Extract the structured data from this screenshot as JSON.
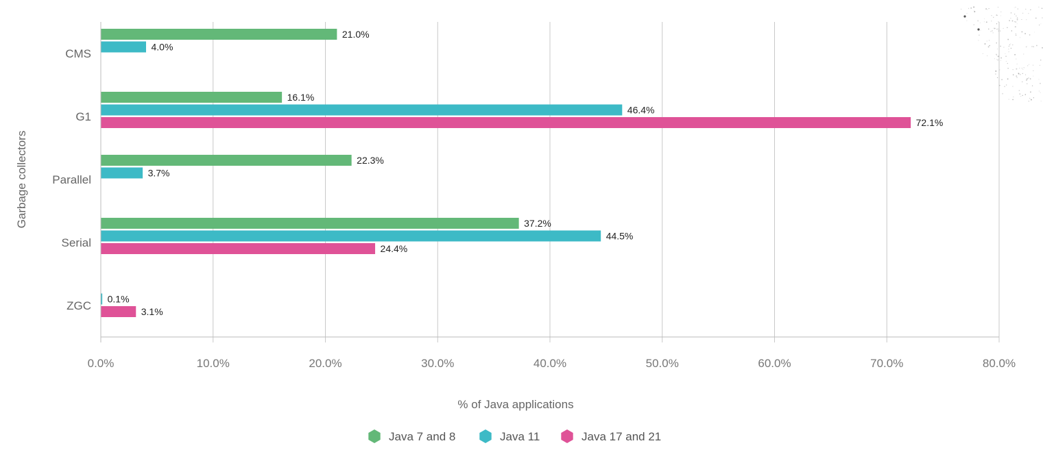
{
  "chart_data": {
    "type": "bar",
    "orientation": "horizontal",
    "categories": [
      "CMS",
      "G1",
      "Parallel",
      "Serial",
      "ZGC"
    ],
    "series": [
      {
        "name": "Java 7 and 8",
        "color": "#63b878",
        "values": [
          21.0,
          16.1,
          22.3,
          37.2,
          null
        ],
        "labels": [
          "21.0%",
          "16.1%",
          "22.3%",
          "37.2%",
          null
        ]
      },
      {
        "name": "Java 11",
        "color": "#3dbac6",
        "values": [
          4.0,
          46.4,
          3.7,
          44.5,
          0.1
        ],
        "labels": [
          "4.0%",
          "46.4%",
          "3.7%",
          "44.5%",
          "0.1%"
        ]
      },
      {
        "name": "Java 17 and 21",
        "color": "#df5297",
        "values": [
          null,
          72.1,
          null,
          24.4,
          3.1
        ],
        "labels": [
          null,
          "72.1%",
          null,
          "24.4%",
          "3.1%"
        ]
      }
    ],
    "xlabel": "% of Java applications",
    "ylabel": "Garbage collectors",
    "xlim": [
      0,
      80
    ],
    "xticks": [
      0,
      10,
      20,
      30,
      40,
      50,
      60,
      70,
      80
    ],
    "xtick_labels": [
      "0.0%",
      "10.0%",
      "20.0%",
      "30.0%",
      "40.0%",
      "50.0%",
      "60.0%",
      "70.0%",
      "80.0%"
    ],
    "grid": "vertical",
    "legend_position": "bottom-center"
  }
}
